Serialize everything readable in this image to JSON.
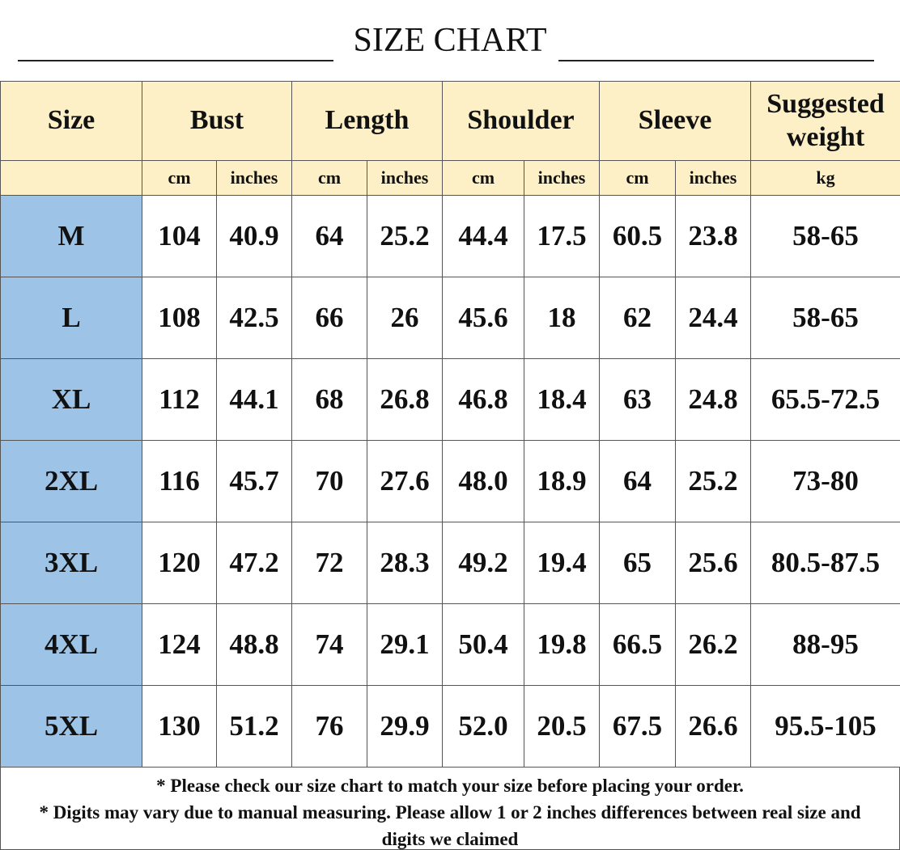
{
  "title": "SIZE CHART",
  "header": {
    "columns": [
      "Size",
      "Bust",
      "Length",
      "Shoulder",
      "Sleeve",
      "Suggested weight"
    ],
    "units": [
      "cm",
      "inches",
      "cm",
      "inches",
      "cm",
      "inches",
      "cm",
      "inches",
      "kg"
    ]
  },
  "table": {
    "rows": [
      [
        "M",
        "104",
        "40.9",
        "64",
        "25.2",
        "44.4",
        "17.5",
        "60.5",
        "23.8",
        "58-65"
      ],
      [
        "L",
        "108",
        "42.5",
        "66",
        "26",
        "45.6",
        "18",
        "62",
        "24.4",
        "58-65"
      ],
      [
        "XL",
        "112",
        "44.1",
        "68",
        "26.8",
        "46.8",
        "18.4",
        "63",
        "24.8",
        "65.5-72.5"
      ],
      [
        "2XL",
        "116",
        "45.7",
        "70",
        "27.6",
        "48.0",
        "18.9",
        "64",
        "25.2",
        "73-80"
      ],
      [
        "3XL",
        "120",
        "47.2",
        "72",
        "28.3",
        "49.2",
        "19.4",
        "65",
        "25.6",
        "80.5-87.5"
      ],
      [
        "4XL",
        "124",
        "48.8",
        "74",
        "29.1",
        "50.4",
        "19.8",
        "66.5",
        "26.2",
        "88-95"
      ],
      [
        "5XL",
        "130",
        "51.2",
        "76",
        "29.9",
        "52.0",
        "20.5",
        "67.5",
        "26.6",
        "95.5-105"
      ]
    ]
  },
  "footer": [
    "* Please check our size chart to match your size before placing your order.",
    "* Digits may vary due to manual measuring. Please allow 1 or 2 inches differences between real size and digits we claimed"
  ]
}
